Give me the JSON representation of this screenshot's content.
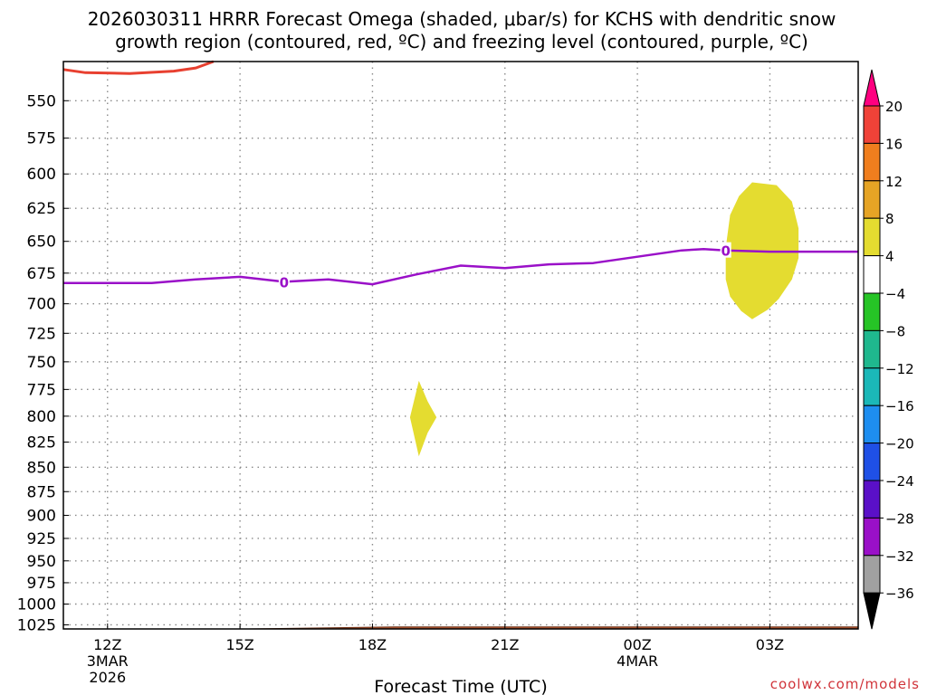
{
  "title": {
    "line1": "2026030311 HRRR Forecast Omega (shaded, μbar/s) for KCHS with dendritic snow",
    "line2": "growth region (contoured, red, ºC) and freezing level (contoured, purple, ºC)"
  },
  "credit": "coolwx.com/models",
  "colors": {
    "dgz": "#e84030",
    "freezing": "#9a10c8",
    "omega_pos4": "#e4dc30",
    "ground": "#a8522e",
    "grid": "#8a8a8a"
  },
  "chart_data": {
    "type": "heatmap",
    "title": "2026030311 HRRR Forecast Omega (shaded, μbar/s) for KCHS with dendritic snow growth region (contoured, red, ºC) and freezing level (contoured, purple, ºC)",
    "xlabel": "Forecast Time (UTC)",
    "ylabel": "",
    "x_ticks": [
      {
        "hour": 0,
        "label": "12Z",
        "sub": [
          "3MAR",
          "2026"
        ]
      },
      {
        "hour": 3,
        "label": "15Z",
        "sub": []
      },
      {
        "hour": 6,
        "label": "18Z",
        "sub": []
      },
      {
        "hour": 9,
        "label": "21Z",
        "sub": []
      },
      {
        "hour": 12,
        "label": "00Z",
        "sub": [
          "4MAR"
        ]
      },
      {
        "hour": 15,
        "label": "03Z",
        "sub": []
      }
    ],
    "x_range_hours": [
      -1,
      17
    ],
    "y_ticks": [
      550,
      575,
      600,
      625,
      650,
      675,
      700,
      725,
      750,
      775,
      800,
      825,
      850,
      875,
      900,
      925,
      950,
      975,
      1000,
      1025
    ],
    "y_range_hPa": [
      525,
      1030
    ],
    "y_scale": "log",
    "grid": true,
    "freezing_level": {
      "label": "0",
      "label_hours": [
        4,
        14
      ],
      "x_hours": [
        -1,
        0,
        1,
        2,
        3,
        4,
        5,
        6,
        7,
        8,
        9,
        10,
        11,
        12,
        13,
        13.5,
        14,
        15,
        16,
        17
      ],
      "pressure_hPa": [
        683,
        683,
        683,
        680,
        678,
        682,
        680,
        684,
        676,
        669,
        671,
        668,
        667,
        662,
        657,
        656,
        657,
        658,
        658,
        658
      ]
    },
    "dgz_contour": {
      "x_hours": [
        -1,
        -0.5,
        0.5,
        1.5,
        2,
        2.4
      ],
      "pressure_hPa": [
        530,
        532,
        532.5,
        531,
        529,
        525
      ]
    },
    "omega_regions": [
      {
        "value_bin": "4 to 8",
        "x_hours": [
          14.6,
          15.15,
          15.5,
          15.65,
          15.65,
          15.5,
          15.2,
          14.95,
          14.6,
          14.35,
          14.1,
          14.0,
          14.0,
          14.1,
          14.3,
          14.6
        ],
        "pressure_hPa": [
          606,
          608,
          620,
          640,
          663,
          680,
          696,
          705,
          713,
          706,
          694,
          680,
          655,
          630,
          616,
          606
        ]
      },
      {
        "value_bin": "4 to 8",
        "x_hours": [
          7.05,
          7.25,
          7.45,
          7.25,
          7.05,
          6.85,
          7.05
        ],
        "pressure_hPa": [
          767,
          786,
          801,
          816,
          839,
          801,
          767
        ]
      }
    ],
    "ground_surface": {
      "x_hours": [
        -1,
        3,
        6.5,
        17
      ],
      "pressure_hPa": [
        1030,
        1030,
        1027.5,
        1027.5
      ]
    },
    "colorbar": {
      "labels": [
        "20",
        "16",
        "12",
        "8",
        "4",
        "−4",
        "−8",
        "−12",
        "−16",
        "−20",
        "−24",
        "−28",
        "−32",
        "−36"
      ],
      "colors": [
        "#ff0080",
        "#f04238",
        "#f07e1e",
        "#e6a425",
        "#e4dc30",
        "#ffffff",
        "#26c426",
        "#1fb88e",
        "#1bb8b8",
        "#1e8ef0",
        "#1f50e6",
        "#5a10c8",
        "#9a10c8",
        "#a0a0a0",
        "#000000"
      ]
    }
  }
}
